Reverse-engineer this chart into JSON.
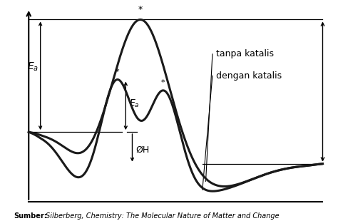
{
  "background_color": "#ffffff",
  "curve_color": "#1a1a1a",
  "line_width": 2.2,
  "reactant_level": 0.35,
  "product_level": 0.18,
  "tanpa_peak": 0.95,
  "cat_peak1": 0.62,
  "cat_peak2": 0.56,
  "cat_valley": 0.44,
  "label_tanpa": "tanpa katalis",
  "label_dengan": "dengan katalis",
  "source_bold": "Sumber:",
  "source_italic": "Silberberg, Chemistry: The Molecular Nature of Matter and Change"
}
